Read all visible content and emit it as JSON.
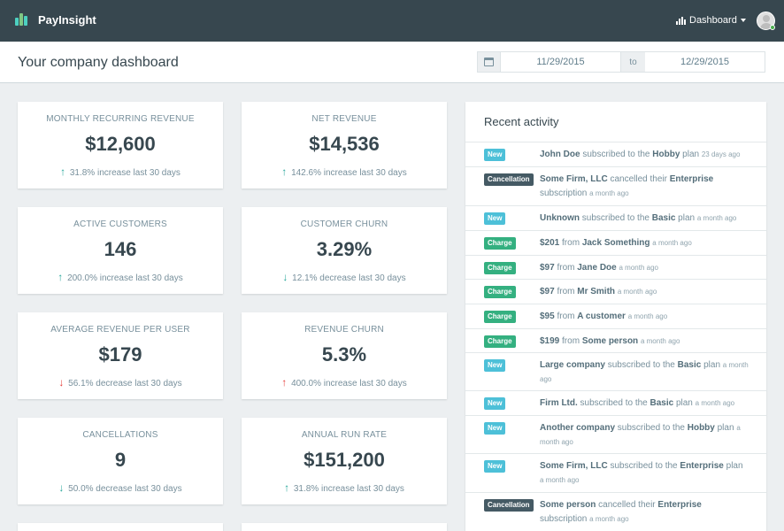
{
  "brand": {
    "name": "PayInsight"
  },
  "nav": {
    "dashboard_label": "Dashboard"
  },
  "header": {
    "title": "Your company dashboard",
    "date_from": "11/29/2015",
    "date_to_label": "to",
    "date_to": "12/29/2015"
  },
  "metrics": [
    {
      "label": "Monthly recurring revenue",
      "value": "$12,600",
      "arrow": "↑",
      "trend": "31.8% increase last 30 days"
    },
    {
      "label": "Net revenue",
      "value": "$14,536",
      "arrow": "↑",
      "trend": "142.6% increase last 30 days"
    },
    {
      "label": "Active customers",
      "value": "146",
      "arrow": "↑",
      "trend": "200.0% increase last 30 days"
    },
    {
      "label": "Customer churn",
      "value": "3.29%",
      "arrow": "↓",
      "trend": "12.1% decrease last 30 days"
    },
    {
      "label": "Average revenue per user",
      "value": "$179",
      "arrow": "↓",
      "trend": "56.1% decrease last 30 days"
    },
    {
      "label": "Revenue churn",
      "value": "5.3%",
      "arrow": "↑",
      "trend": "400.0% increase last 30 days"
    },
    {
      "label": "Cancellations",
      "value": "9",
      "arrow": "↓",
      "trend": "50.0% decrease last 30 days"
    },
    {
      "label": "Annual run rate",
      "value": "$151,200",
      "arrow": "↑",
      "trend": "31.8% increase last 30 days"
    }
  ],
  "activity": {
    "title": "Recent activity",
    "items": [
      {
        "badge": "New",
        "p1": "John Doe",
        "t1": " subscribed to the ",
        "p2": "Hobby",
        "t2": " plan ",
        "time": "23 days ago"
      },
      {
        "badge": "Cancellation",
        "p1": "Some Firm, LLC",
        "t1": " cancelled their ",
        "p2": "Enterprise",
        "t2": " subscription ",
        "time": "a month ago"
      },
      {
        "badge": "New",
        "p1": "Unknown",
        "t1": " subscribed to the ",
        "p2": "Basic",
        "t2": " plan ",
        "time": "a month ago"
      },
      {
        "badge": "Charge",
        "p1": "$201",
        "t1": " from ",
        "p2": "Jack Something",
        "t2": " ",
        "time": "a month ago"
      },
      {
        "badge": "Charge",
        "p1": "$97",
        "t1": " from ",
        "p2": "Jane Doe",
        "t2": " ",
        "time": "a month ago"
      },
      {
        "badge": "Charge",
        "p1": "$97",
        "t1": " from ",
        "p2": "Mr Smith",
        "t2": " ",
        "time": "a month ago"
      },
      {
        "badge": "Charge",
        "p1": "$95",
        "t1": " from ",
        "p2": "A customer",
        "t2": " ",
        "time": "a month ago"
      },
      {
        "badge": "Charge",
        "p1": "$199",
        "t1": " from ",
        "p2": "Some person",
        "t2": " ",
        "time": "a month ago"
      },
      {
        "badge": "New",
        "p1": "Large company",
        "t1": " subscribed to the ",
        "p2": "Basic",
        "t2": " plan ",
        "time": "a month ago"
      },
      {
        "badge": "New",
        "p1": "Firm Ltd.",
        "t1": " subscribed to the ",
        "p2": "Basic",
        "t2": " plan ",
        "time": "a month ago"
      },
      {
        "badge": "New",
        "p1": "Another company",
        "t1": " subscribed to the ",
        "p2": "Hobby",
        "t2": " plan ",
        "time": "a month ago"
      },
      {
        "badge": "New",
        "p1": "Some Firm, LLC",
        "t1": " subscribed to the ",
        "p2": "Enterprise",
        "t2": " plan ",
        "time": "a month ago"
      },
      {
        "badge": "Cancellation",
        "p1": "Some person",
        "t1": " cancelled their ",
        "p2": "Enterprise",
        "t2": " subscription ",
        "time": "a month ago"
      }
    ]
  }
}
